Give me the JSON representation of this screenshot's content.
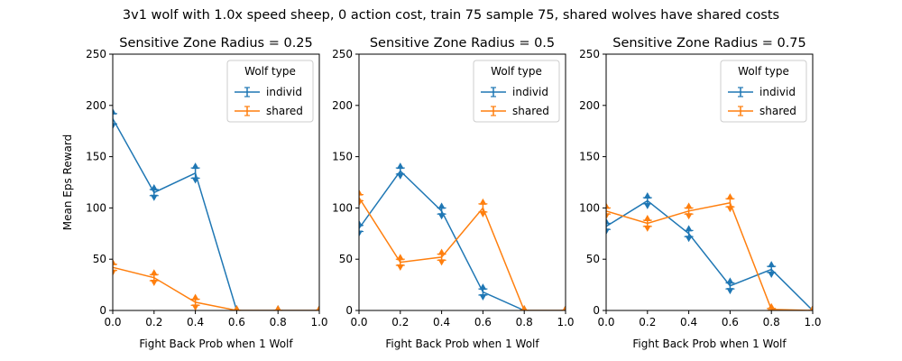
{
  "figure": {
    "suptitle": "3v1 wolf with 1.0x speed sheep, 0 action cost, train 75 sample 75, shared wolves have shared costs"
  },
  "colors": {
    "individ": "#1f77b4",
    "shared": "#ff7f0e"
  },
  "chart_data": [
    {
      "type": "line",
      "title": "Sensitive Zone Radius = 0.25",
      "xlabel": "Fight Back Prob when 1 Wolf",
      "ylabel": "Mean Eps Reward",
      "xlim": [
        0,
        1
      ],
      "ylim": [
        0,
        250
      ],
      "xticks": [
        "0.0",
        "0.2",
        "0.4",
        "0.6",
        "0.8",
        "1.0"
      ],
      "yticks": [
        "0",
        "50",
        "100",
        "150",
        "200",
        "250"
      ],
      "legend": {
        "title": "Wolf type",
        "position": "top-right"
      },
      "x": [
        0.0,
        0.2,
        0.4,
        0.6,
        0.8,
        1.0
      ],
      "series": [
        {
          "name": "individ",
          "values": [
            187,
            115,
            134,
            0,
            0,
            0
          ],
          "errors": [
            5,
            3,
            5,
            0,
            0,
            0
          ]
        },
        {
          "name": "shared",
          "values": [
            42,
            32,
            8,
            0,
            0,
            0
          ],
          "errors": [
            3,
            3,
            3,
            0,
            0,
            0
          ]
        }
      ]
    },
    {
      "type": "line",
      "title": "Sensitive Zone Radius = 0.5",
      "xlabel": "Fight Back Prob when 1 Wolf",
      "ylabel": "",
      "xlim": [
        0,
        1
      ],
      "ylim": [
        0,
        250
      ],
      "xticks": [
        "0.0",
        "0.2",
        "0.4",
        "0.6",
        "0.8",
        "1.0"
      ],
      "yticks": [
        "0",
        "50",
        "100",
        "150",
        "200",
        "250"
      ],
      "legend": {
        "title": "Wolf type",
        "position": "top-right"
      },
      "x": [
        0.0,
        0.2,
        0.4,
        0.6,
        0.8,
        1.0
      ],
      "series": [
        {
          "name": "individ",
          "values": [
            80,
            136,
            97,
            18,
            0,
            0
          ],
          "errors": [
            3,
            3,
            3,
            3,
            0,
            0
          ]
        },
        {
          "name": "shared",
          "values": [
            110,
            47,
            52,
            100,
            0,
            0
          ],
          "errors": [
            3,
            3,
            3,
            4,
            0,
            0
          ]
        }
      ]
    },
    {
      "type": "line",
      "title": "Sensitive Zone Radius = 0.75",
      "xlabel": "Fight Back Prob when 1 Wolf",
      "ylabel": "",
      "xlim": [
        0,
        1
      ],
      "ylim": [
        0,
        250
      ],
      "xticks": [
        "0.0",
        "0.2",
        "0.4",
        "0.6",
        "0.8",
        "1.0"
      ],
      "yticks": [
        "0",
        "50",
        "100",
        "150",
        "200",
        "250"
      ],
      "legend": {
        "title": "Wolf type",
        "position": "top-right"
      },
      "x": [
        0.0,
        0.2,
        0.4,
        0.6,
        0.8,
        1.0
      ],
      "series": [
        {
          "name": "individ",
          "values": [
            82,
            107,
            75,
            24,
            40,
            0
          ],
          "errors": [
            3,
            3,
            3,
            3,
            3,
            0
          ]
        },
        {
          "name": "shared",
          "values": [
            97,
            85,
            97,
            105,
            1,
            0
          ],
          "errors": [
            3,
            3,
            3,
            4,
            1,
            0
          ]
        }
      ]
    }
  ]
}
